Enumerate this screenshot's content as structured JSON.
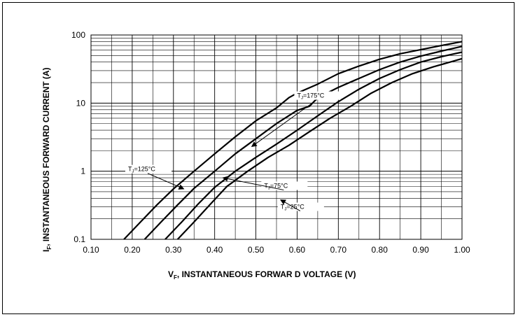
{
  "chart_data": {
    "type": "line",
    "x_scale": "linear",
    "y_scale": "log",
    "xlim": [
      0.1,
      1.0
    ],
    "ylim": [
      0.1,
      100
    ],
    "x_ticks": [
      "0.10",
      "0.20",
      "0.30",
      "0.40",
      "0.50",
      "0.60",
      "0.70",
      "0.80",
      "0.90",
      "1.00"
    ],
    "y_ticks": [
      "0.1",
      "1",
      "10",
      "100"
    ],
    "xlabel": "Vₒ, INSTANTANEOUS FORWAR D VOLTAGE (V)",
    "xlabel_main": "V",
    "xlabel_sub": "F",
    "xlabel_rest": ", INSTANTANEOUS FORWAR D  VOLTAGE  (V)",
    "ylabel_main": "I",
    "ylabel_sub": "F",
    "ylabel_rest": ", INSTANTANEOUS FORWARD CURRENT (A)",
    "grid": true,
    "series": [
      {
        "name": "TJ=175°C",
        "label_main": "T",
        "label_sub": "J",
        "label_rest": "=175°C",
        "x": [
          0.18,
          0.22,
          0.26,
          0.3,
          0.35,
          0.4,
          0.45,
          0.5,
          0.55,
          0.58,
          0.6,
          0.65,
          0.7,
          0.75,
          0.8,
          0.85,
          0.9,
          0.95,
          1.0
        ],
        "y": [
          0.1,
          0.18,
          0.32,
          0.55,
          1.0,
          1.8,
          3.2,
          5.5,
          8.5,
          12,
          14,
          19,
          27,
          35,
          44,
          53,
          61,
          70,
          80
        ]
      },
      {
        "name": "TJ=125°C",
        "label_main": "T",
        "label_sub": "J",
        "label_rest": "=125°C",
        "x": [
          0.23,
          0.27,
          0.31,
          0.35,
          0.4,
          0.45,
          0.5,
          0.55,
          0.6,
          0.63,
          0.65,
          0.7,
          0.75,
          0.8,
          0.85,
          0.9,
          0.95,
          1.0
        ],
        "y": [
          0.1,
          0.18,
          0.32,
          0.56,
          1.0,
          1.8,
          3.0,
          5.0,
          7.8,
          9.0,
          12,
          17,
          23,
          31,
          40,
          49,
          58,
          68
        ]
      },
      {
        "name": "TJ=75°C",
        "label_main": "T",
        "label_sub": "J",
        "label_rest": "=75°C",
        "x": [
          0.28,
          0.32,
          0.36,
          0.4,
          0.45,
          0.5,
          0.55,
          0.6,
          0.65,
          0.7,
          0.75,
          0.8,
          0.85,
          0.9,
          0.95,
          1.0
        ],
        "y": [
          0.1,
          0.18,
          0.33,
          0.58,
          1.0,
          1.6,
          2.5,
          4.0,
          6.5,
          10.5,
          16,
          23,
          31,
          40,
          48,
          56
        ]
      },
      {
        "name": "TJ=25°C",
        "label_main": "T",
        "label_sub": "J",
        "label_rest": "=25°C",
        "x": [
          0.31,
          0.35,
          0.39,
          0.43,
          0.48,
          0.53,
          0.58,
          0.63,
          0.68,
          0.73,
          0.78,
          0.83,
          0.88,
          0.93,
          1.0
        ],
        "y": [
          0.1,
          0.18,
          0.33,
          0.6,
          1.0,
          1.6,
          2.4,
          3.8,
          6.0,
          9.0,
          14,
          20,
          27,
          34,
          45
        ]
      }
    ],
    "annotations": [
      {
        "series": 0,
        "label_x": 0.6,
        "label_y": 12,
        "arrow_x": 0.49,
        "arrow_y": 2.3
      },
      {
        "series": 1,
        "label_x": 0.19,
        "label_y": 1.0,
        "arrow_x": 0.325,
        "arrow_y": 0.55
      },
      {
        "series": 2,
        "label_x": 0.52,
        "label_y": 0.57,
        "arrow_x": 0.42,
        "arrow_y": 0.8
      },
      {
        "series": 3,
        "label_x": 0.56,
        "label_y": 0.28,
        "arrow_x": 0.56,
        "arrow_y": 0.38
      }
    ]
  }
}
